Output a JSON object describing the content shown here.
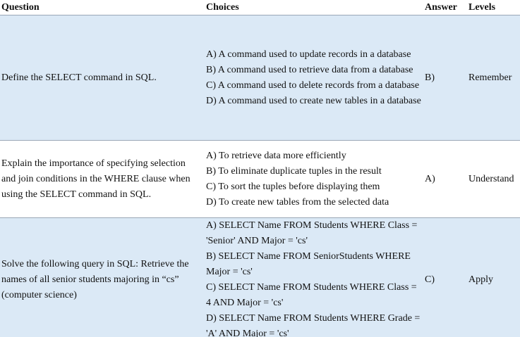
{
  "headers": {
    "question": "Question",
    "choices": "Choices",
    "answer": "Answer",
    "levels": "Levels"
  },
  "rows": [
    {
      "question": "Define the SELECT command in SQL.",
      "choices": [
        "A) A command used to update records in a database",
        "B) A command used to retrieve data from a database",
        "C) A command used to delete records from a database",
        "D) A command used to create new tables in a database"
      ],
      "answer": "B)",
      "level": "Remember"
    },
    {
      "question": "Explain the importance of specifying selection and join conditions in the WHERE clause when using the SELECT command in SQL.",
      "choices": [
        "A) To retrieve data more efficiently",
        "B) To eliminate duplicate tuples in the result",
        "C) To sort the tuples before displaying them",
        "D) To create new tables from the selected data"
      ],
      "answer": "A)",
      "level": "Understand"
    },
    {
      "question": "Solve the following query in SQL: Retrieve the names of all senior students majoring in “cs” (computer science)",
      "choices": [
        "A) SELECT Name FROM Students WHERE Class = 'Senior' AND Major = 'cs'",
        "B) SELECT Name FROM SeniorStudents WHERE Major = 'cs'",
        "C) SELECT Name FROM Students WHERE Class = 4 AND Major = 'cs'",
        "D) SELECT Name FROM Students WHERE Grade = 'A' AND Major = 'cs'"
      ],
      "answer": "C)",
      "level": "Apply"
    }
  ]
}
